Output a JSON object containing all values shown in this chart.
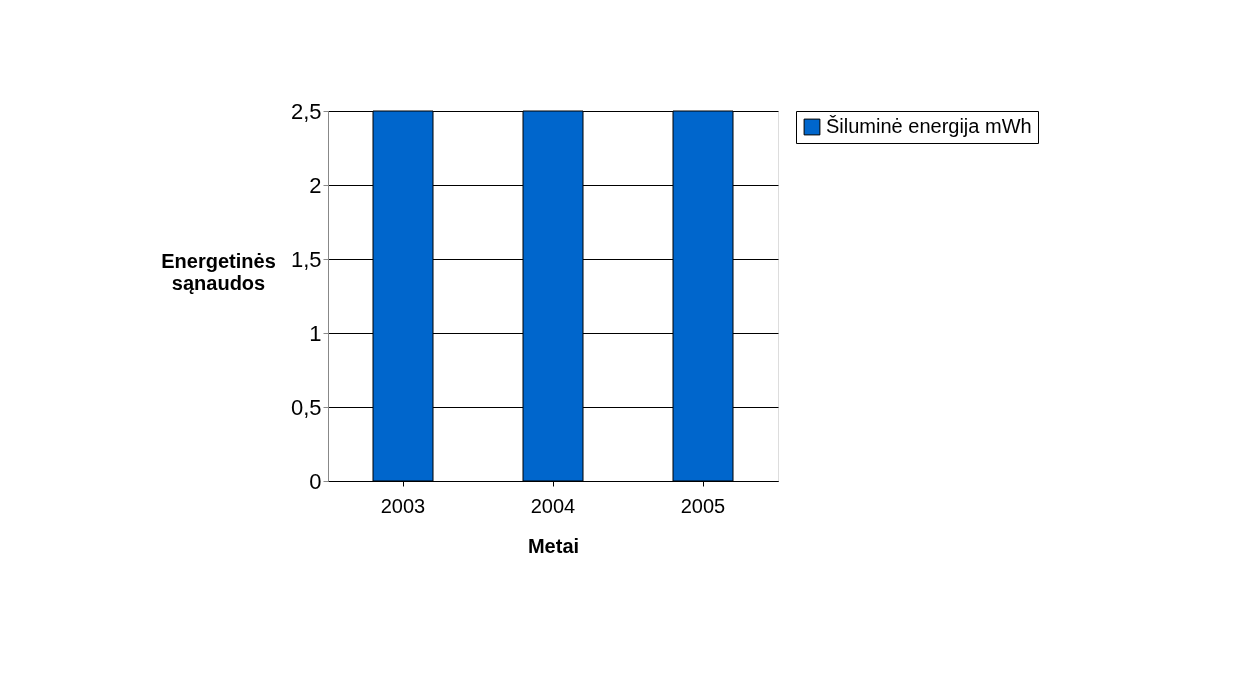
{
  "chart_data": {
    "type": "bar",
    "xlabel": "Metai",
    "ylabel": "Energetinės sąnaudos",
    "categories": [
      "2003",
      "2004",
      "2005"
    ],
    "series": [
      {
        "name": "Šiluminė energija mWh",
        "color": "#0066cc",
        "values": [
          2.5,
          2.5,
          2.5
        ]
      }
    ],
    "ylim": [
      0,
      2.5
    ],
    "yticks": [
      0,
      {
        "value": 0.5,
        "label": "0,5"
      },
      1,
      {
        "value": 1.5,
        "label": "1,5"
      },
      2,
      {
        "value": 2.5,
        "label": "2,5"
      }
    ],
    "grid": "y",
    "legend": "right"
  }
}
